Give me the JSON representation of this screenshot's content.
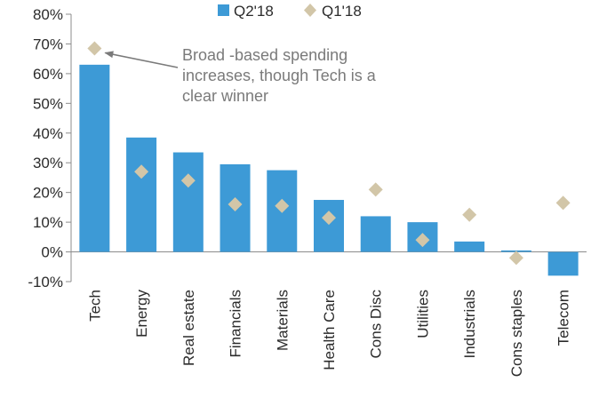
{
  "chart_data": {
    "type": "bar",
    "title": "",
    "xlabel": "",
    "ylabel": "",
    "ylim": [
      -10,
      80
    ],
    "y_ticks": [
      -10,
      0,
      10,
      20,
      30,
      40,
      50,
      60,
      70,
      80
    ],
    "y_tick_labels": [
      "-10%",
      "0%",
      "10%",
      "20%",
      "30%",
      "40%",
      "50%",
      "60%",
      "70%",
      "80%"
    ],
    "categories": [
      "Tech",
      "Energy",
      "Real estate",
      "Financials",
      "Materials",
      "Health Care",
      "Cons Disc",
      "Utilities",
      "Industrials",
      "Cons staples",
      "Telecom"
    ],
    "series": [
      {
        "name": "Q2'18",
        "type": "bar",
        "color": "#3d9ad6",
        "values": [
          63,
          38.5,
          33.5,
          29.5,
          27.5,
          17.5,
          12,
          10,
          3.5,
          0.5,
          -8
        ]
      },
      {
        "name": "Q1'18",
        "type": "marker",
        "marker": "diamond",
        "color": "#d2c6a8",
        "values": [
          68.5,
          27,
          24,
          16,
          15.5,
          11.5,
          21,
          4,
          12.5,
          -2,
          16.5
        ]
      }
    ],
    "legend": {
      "position": "top-center",
      "items": [
        "Q2'18",
        "Q1'18"
      ]
    },
    "annotation": {
      "lines": [
        "Broad -based spending",
        "increases, though Tech is a",
        "clear winner"
      ],
      "target_category": "Tech",
      "target_series": "Q1'18"
    }
  }
}
